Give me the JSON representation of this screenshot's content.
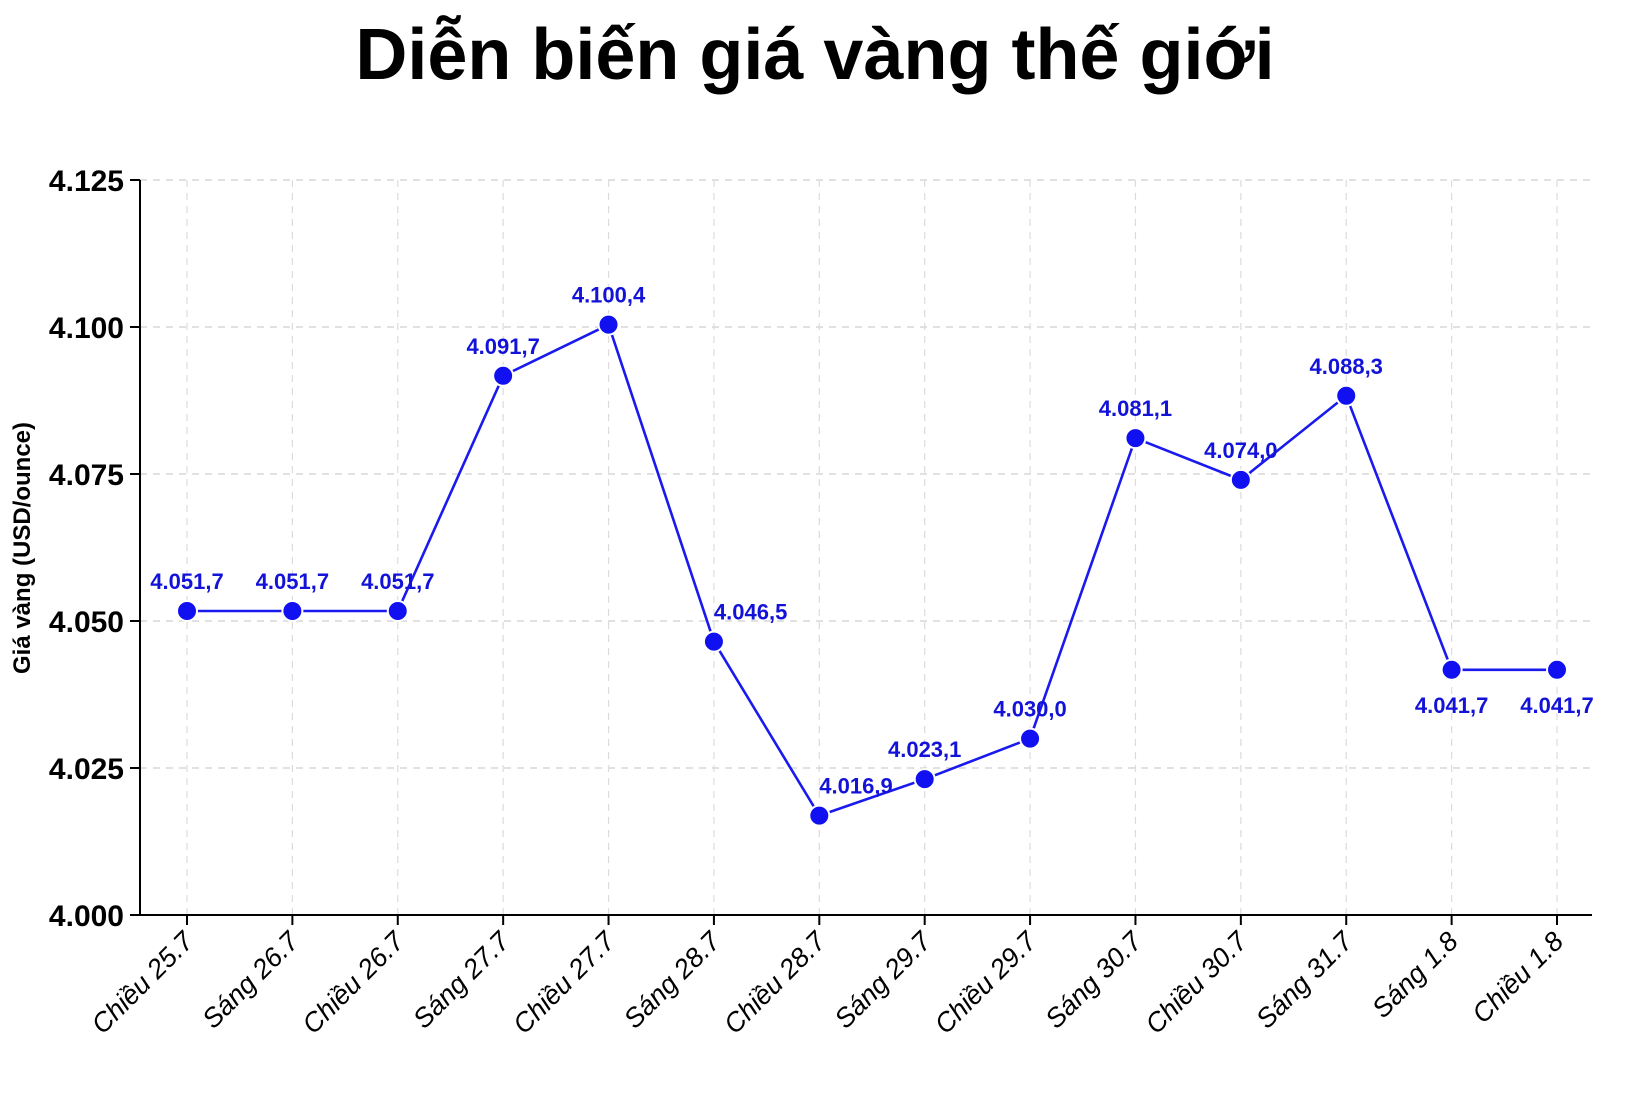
{
  "chart_data": {
    "type": "line",
    "title": "Diễn biến giá vàng thế giới",
    "ylabel": "Giá vàng (USD/ounce)",
    "xlabel": "",
    "categories": [
      "Chiều 25.7",
      "Sáng 26.7",
      "Chiều 26.7",
      "Sáng 27.7",
      "Chiều 27.7",
      "Sáng 28.7",
      "Chiều 28.7",
      "Sáng 29.7",
      "Chiều 29.7",
      "Sáng 30.7",
      "Chiều 30.7",
      "Sáng 31.7",
      "Sáng 1.8",
      "Chiều 1.8"
    ],
    "values": [
      4051.7,
      4051.7,
      4051.7,
      4091.7,
      4100.4,
      4046.5,
      4016.9,
      4023.1,
      4030.0,
      4081.1,
      4074.0,
      4088.3,
      4041.7,
      4041.7
    ],
    "data_labels": [
      "4.051,7",
      "4.051,7",
      "4.051,7",
      "4.091,7",
      "4.100,4",
      "4.046,5",
      "4.016,9",
      "4.023,1",
      "4.030,0",
      "4.081,1",
      "4.074,0",
      "4.088,3",
      "4.041,7",
      "4.041,7"
    ],
    "label_positions": [
      "above",
      "above",
      "above",
      "above",
      "above",
      "above-right",
      "above-right",
      "above",
      "above",
      "above",
      "above",
      "above",
      "below",
      "below"
    ],
    "ylim": [
      4000,
      4125
    ],
    "yticks": [
      4000,
      4025,
      4050,
      4075,
      4100,
      4125
    ],
    "ytick_labels": [
      "4.000",
      "4.025",
      "4.050",
      "4.075",
      "4.100",
      "4.125"
    ],
    "grid": true,
    "legend": "none",
    "colors": {
      "line": "#1a1aee",
      "marker": "#1010f0",
      "label": "#1212d8",
      "grid": "#cfcfcf"
    }
  }
}
